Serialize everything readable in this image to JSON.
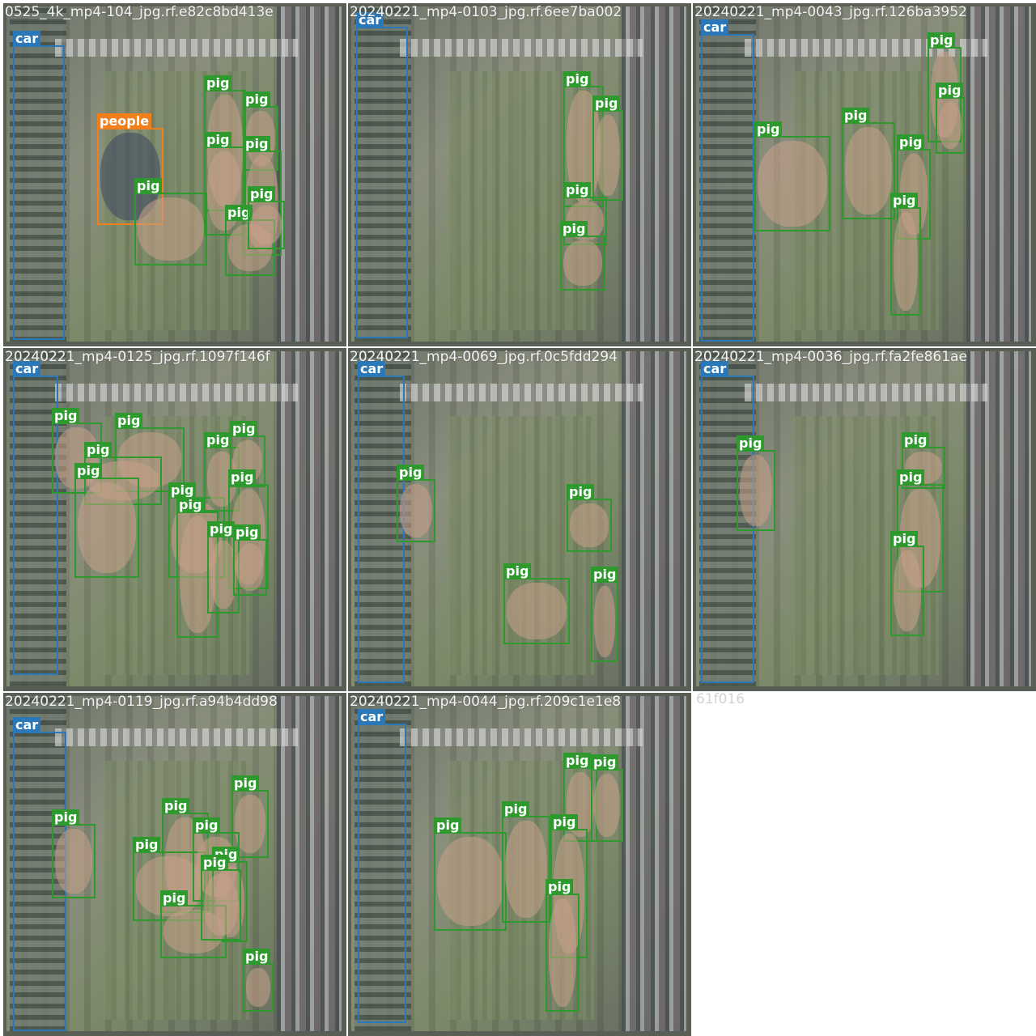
{
  "colors": {
    "pig": "#2e9a2e",
    "car": "#2a78b8",
    "people": "#f07f1c"
  },
  "tiles": [
    {
      "caption": "0525_4k_mp4-104_jpg.rf.e82c8bd413e",
      "boxes": [
        {
          "cls": "car",
          "label": "car"
        },
        {
          "cls": "people",
          "label": "people"
        },
        {
          "cls": "pig",
          "label": "pig"
        },
        {
          "cls": "pig",
          "label": "pig"
        },
        {
          "cls": "pig",
          "label": "pig"
        },
        {
          "cls": "pig",
          "label": "pig"
        },
        {
          "cls": "pig",
          "label": "pig"
        },
        {
          "cls": "pig",
          "label": "pig"
        },
        {
          "cls": "pig",
          "label": "pig"
        }
      ]
    },
    {
      "caption": "20240221_mp4-0103_jpg.rf.6ee7ba002",
      "boxes": [
        {
          "cls": "car",
          "label": "car"
        },
        {
          "cls": "pig",
          "label": "pig"
        },
        {
          "cls": "pig",
          "label": "pig"
        },
        {
          "cls": "pig",
          "label": "pig"
        },
        {
          "cls": "pig",
          "label": "pig"
        }
      ]
    },
    {
      "caption": "20240221_mp4-0043_jpg.rf.126ba3952",
      "boxes": [
        {
          "cls": "car",
          "label": "car"
        },
        {
          "cls": "pig",
          "label": "pig"
        },
        {
          "cls": "pig",
          "label": "pig"
        },
        {
          "cls": "pig",
          "label": "pig"
        },
        {
          "cls": "pig",
          "label": "pig"
        },
        {
          "cls": "pig",
          "label": "pig"
        },
        {
          "cls": "pig",
          "label": "pig"
        }
      ]
    },
    {
      "caption": "20240221_mp4-0125_jpg.rf.1097f146f",
      "boxes": [
        {
          "cls": "car",
          "label": "car"
        },
        {
          "cls": "pig",
          "label": "pig"
        },
        {
          "cls": "pig",
          "label": "pig"
        },
        {
          "cls": "pig",
          "label": "pig"
        },
        {
          "cls": "pig",
          "label": "pig"
        },
        {
          "cls": "pig",
          "label": "pig"
        },
        {
          "cls": "pig",
          "label": "pig"
        },
        {
          "cls": "pig",
          "label": "pig"
        },
        {
          "cls": "pig",
          "label": "pig"
        },
        {
          "cls": "pig",
          "label": "pig"
        },
        {
          "cls": "pig",
          "label": "pig"
        },
        {
          "cls": "pig",
          "label": "pig"
        }
      ]
    },
    {
      "caption": "20240221_mp4-0069_jpg.rf.0c5fdd294",
      "boxes": [
        {
          "cls": "car",
          "label": "car"
        },
        {
          "cls": "pig",
          "label": "pig"
        },
        {
          "cls": "pig",
          "label": "pig"
        },
        {
          "cls": "pig",
          "label": "pig"
        },
        {
          "cls": "pig",
          "label": "pig"
        }
      ]
    },
    {
      "caption": "20240221_mp4-0036_jpg.rf.fa2fe861ae",
      "boxes": [
        {
          "cls": "car",
          "label": "car"
        },
        {
          "cls": "pig",
          "label": "pig"
        },
        {
          "cls": "pig",
          "label": "pig"
        },
        {
          "cls": "pig",
          "label": "pig"
        },
        {
          "cls": "pig",
          "label": "pig"
        }
      ]
    },
    {
      "caption": "20240221_mp4-0119_jpg.rf.a94b4dd98",
      "boxes": [
        {
          "cls": "car",
          "label": "car"
        },
        {
          "cls": "pig",
          "label": "pig"
        },
        {
          "cls": "pig",
          "label": "pig"
        },
        {
          "cls": "pig",
          "label": "pig"
        },
        {
          "cls": "pig",
          "label": "pig"
        },
        {
          "cls": "pig",
          "label": "pig"
        },
        {
          "cls": "pig",
          "label": "pig"
        },
        {
          "cls": "pig",
          "label": "pig"
        },
        {
          "cls": "pig",
          "label": "pig"
        },
        {
          "cls": "pig",
          "label": "pig"
        }
      ]
    },
    {
      "caption": "20240221_mp4-0044_jpg.rf.209c1e1e8",
      "boxes": [
        {
          "cls": "car",
          "label": "car"
        },
        {
          "cls": "pig",
          "label": "pig"
        },
        {
          "cls": "pig",
          "label": "pig"
        },
        {
          "cls": "pig",
          "label": "pig"
        },
        {
          "cls": "pig",
          "label": "pig"
        },
        {
          "cls": "pig",
          "label": "pig"
        },
        {
          "cls": "pig",
          "label": "pig"
        }
      ]
    }
  ],
  "overflow_caption": "61f016"
}
